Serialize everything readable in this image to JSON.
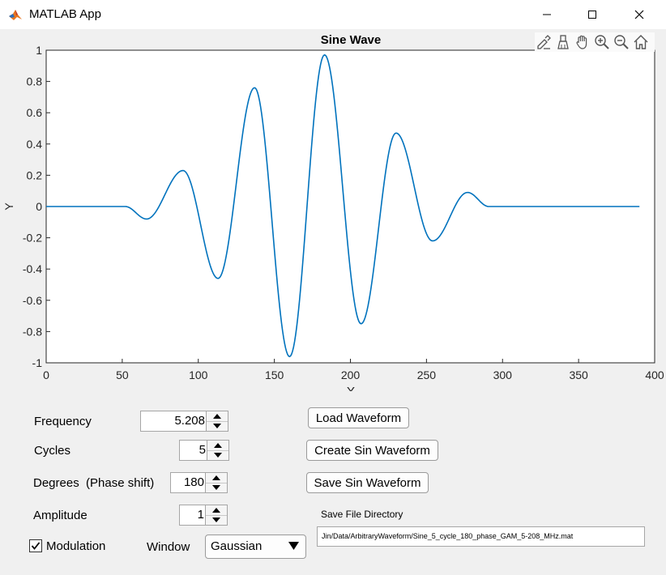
{
  "window": {
    "title": "MATLAB App",
    "colors": {
      "titlebar": "#ffffff",
      "body": "#f0f0f0"
    }
  },
  "axes_toolbar": {
    "icons": [
      "brush-edit-icon",
      "data-cursor-icon",
      "pan-hand-icon",
      "zoom-in-icon",
      "zoom-out-icon",
      "home-icon"
    ]
  },
  "chart_data": {
    "type": "line",
    "title": "Sine Wave",
    "xlabel": "X",
    "ylabel": "Y",
    "xlim": [
      0,
      400
    ],
    "ylim": [
      -1,
      1
    ],
    "xticks": [
      "0",
      "50",
      "100",
      "150",
      "200",
      "250",
      "300",
      "350",
      "400"
    ],
    "yticks": [
      "1",
      "0.8",
      "0.6",
      "0.4",
      "0.2",
      "0",
      "-0.2",
      "-0.4",
      "-0.6",
      "-0.8",
      "-1"
    ],
    "line_color": "#0072bd",
    "series": [
      {
        "x": [
          0,
          52,
          66,
          90,
          113,
          137,
          160,
          183,
          207,
          230,
          254,
          277,
          291,
          390
        ],
        "y": [
          0,
          0,
          -0.08,
          0.23,
          -0.46,
          0.76,
          -0.96,
          0.97,
          -0.75,
          0.47,
          -0.22,
          0.09,
          0,
          0
        ]
      }
    ]
  },
  "controls": {
    "frequency": {
      "label": "Frequency",
      "value": "5.208"
    },
    "cycles": {
      "label": "Cycles",
      "value": "5"
    },
    "degrees": {
      "label": "Degrees  (Phase shift)",
      "value": "180"
    },
    "amplitude": {
      "label": "Amplitude",
      "value": "1"
    },
    "modulation": {
      "label": "Modulation",
      "checked": true
    },
    "window": {
      "label": "Window",
      "selected": "Gaussian"
    }
  },
  "buttons": {
    "load": "Load Waveform",
    "create": "Create Sin Waveform",
    "save": "Save Sin Waveform"
  },
  "save_dir": {
    "label": "Save File Directory",
    "value": "Jin/Data/ArbitraryWaveform/Sine_5_cycle_180_phase_GAM_5-208_MHz.mat"
  }
}
